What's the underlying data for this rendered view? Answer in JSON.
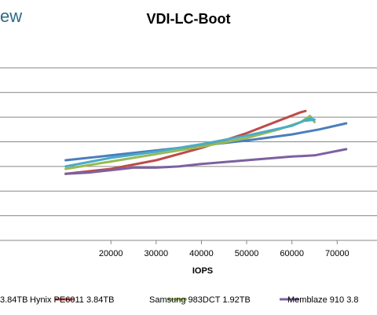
{
  "brand": {
    "logo_text": "ew"
  },
  "chart_data": {
    "type": "line",
    "title": "VDI-LC-Boot",
    "xlabel": "IOPS",
    "ylabel": "",
    "xlim": [
      10000,
      72000
    ],
    "ylim": [
      0,
      8
    ],
    "x_ticks": [
      20000,
      30000,
      40000,
      50000,
      60000,
      70000
    ],
    "y_gridlines": [
      1,
      2,
      3,
      4,
      5,
      6,
      7
    ],
    "grid": true,
    "legend_position": "bottom",
    "series": [
      {
        "name": "3.84TB",
        "color": "#4a7ebb",
        "x": [
          10000,
          20000,
          30000,
          40000,
          50000,
          60000,
          66000,
          72000
        ],
        "y": [
          3.25,
          3.45,
          3.65,
          3.85,
          4.05,
          4.3,
          4.5,
          4.75
        ]
      },
      {
        "name": "Hynix PE6011 3.84TB",
        "color": "#be4b48",
        "x": [
          10000,
          20000,
          30000,
          40000,
          50000,
          57000,
          62000,
          63000
        ],
        "y": [
          2.7,
          2.9,
          3.25,
          3.75,
          4.35,
          4.85,
          5.2,
          5.25
        ]
      },
      {
        "name": "Samsung 983DCT 1.92TB",
        "color": "#98b954",
        "x": [
          10000,
          20000,
          30000,
          40000,
          50000,
          57000,
          62000,
          64000,
          65000
        ],
        "y": [
          2.9,
          3.2,
          3.5,
          3.8,
          4.15,
          4.5,
          4.8,
          5.05,
          4.8
        ]
      },
      {
        "name": "Memblaze 910",
        "color": "#7d60a0",
        "x": [
          10000,
          15000,
          20000,
          25000,
          30000,
          35000,
          40000,
          50000,
          60000,
          65000,
          72000
        ],
        "y": [
          2.7,
          2.75,
          2.85,
          2.95,
          2.95,
          3.0,
          3.1,
          3.25,
          3.4,
          3.45,
          3.7
        ]
      },
      {
        "name": "",
        "color": "#4bacc6",
        "x": [
          10000,
          20000,
          30000,
          40000,
          50000,
          60000,
          64000,
          65000,
          63000
        ],
        "y": [
          3.0,
          3.35,
          3.6,
          3.9,
          4.25,
          4.65,
          4.95,
          4.9,
          4.85
        ]
      }
    ],
    "legend_entries": [
      {
        "label": "3.84TB",
        "color": "#4a7ebb"
      },
      {
        "label": "Hynix PE6011 3.84TB",
        "color": "#be4b48"
      },
      {
        "label": "Samsung 983DCT 1.92TB",
        "color": "#98b954"
      },
      {
        "label": "Memblaze 910 3.8",
        "color": "#7d60a0"
      }
    ]
  }
}
